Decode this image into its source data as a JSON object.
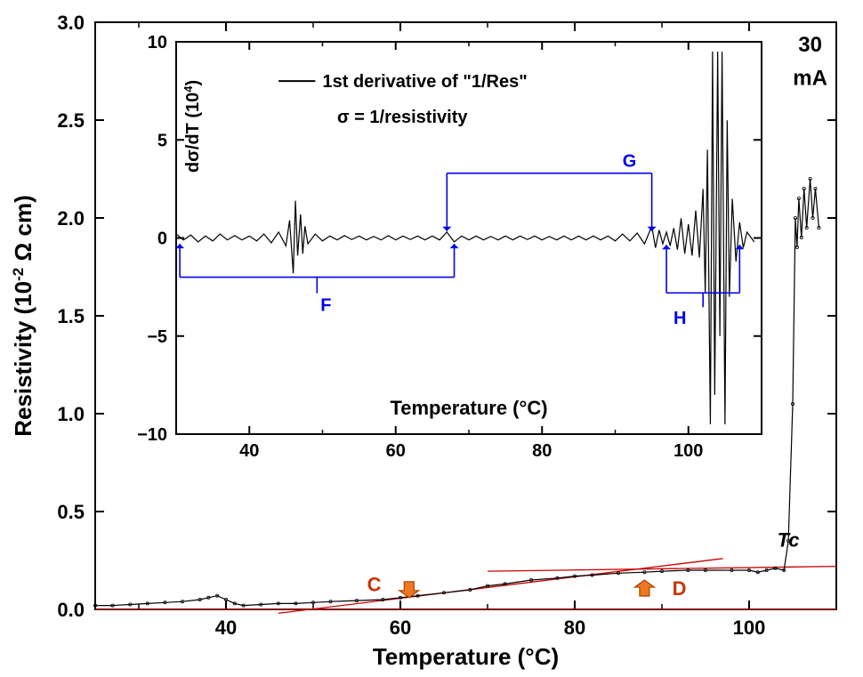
{
  "main": {
    "type": "line",
    "xlabel": "Temperature (°C)",
    "ylabel": "Resistivity (10⁻² Ω cm)",
    "label_fontsize": 26,
    "label_fontweight": "bold",
    "label_color": "#000000",
    "xlim": [
      25,
      110
    ],
    "ylim": [
      0,
      3.0
    ],
    "xticks": [
      40,
      60,
      80,
      100
    ],
    "yticks": [
      0.0,
      0.5,
      1.0,
      1.5,
      2.0,
      2.5,
      3.0
    ],
    "tick_fontsize": 22,
    "tick_fontweight": "bold",
    "border_color": "#000000",
    "border_width": 2,
    "background_color": "#ffffff",
    "line_color": "#000000",
    "data_marker_color": "#000000",
    "tangent_line_color": "#cc0000",
    "tangent_line_width": 1.3,
    "annotation_color": "#cc3300",
    "annotation_fontsize": 22,
    "annotations": {
      "C": "C",
      "D": "D",
      "Tc": "Tc",
      "topright": "30",
      "topright_unit": "mA"
    },
    "arrow_fill": "#ee7722",
    "arrow_stroke": "#aa4400",
    "data": [
      {
        "x": 25,
        "y": 0.02
      },
      {
        "x": 27,
        "y": 0.02
      },
      {
        "x": 29,
        "y": 0.025
      },
      {
        "x": 31,
        "y": 0.03
      },
      {
        "x": 33,
        "y": 0.035
      },
      {
        "x": 35,
        "y": 0.04
      },
      {
        "x": 37,
        "y": 0.05
      },
      {
        "x": 38,
        "y": 0.06
      },
      {
        "x": 39,
        "y": 0.07
      },
      {
        "x": 40,
        "y": 0.05
      },
      {
        "x": 41,
        "y": 0.03
      },
      {
        "x": 42,
        "y": 0.02
      },
      {
        "x": 44,
        "y": 0.025
      },
      {
        "x": 46,
        "y": 0.03
      },
      {
        "x": 48,
        "y": 0.03
      },
      {
        "x": 50,
        "y": 0.035
      },
      {
        "x": 52,
        "y": 0.04
      },
      {
        "x": 55,
        "y": 0.045
      },
      {
        "x": 58,
        "y": 0.05
      },
      {
        "x": 60,
        "y": 0.06
      },
      {
        "x": 62,
        "y": 0.07
      },
      {
        "x": 65,
        "y": 0.085
      },
      {
        "x": 68,
        "y": 0.1
      },
      {
        "x": 70,
        "y": 0.12
      },
      {
        "x": 72,
        "y": 0.13
      },
      {
        "x": 75,
        "y": 0.15
      },
      {
        "x": 78,
        "y": 0.16
      },
      {
        "x": 80,
        "y": 0.17
      },
      {
        "x": 82,
        "y": 0.175
      },
      {
        "x": 85,
        "y": 0.185
      },
      {
        "x": 88,
        "y": 0.19
      },
      {
        "x": 90,
        "y": 0.195
      },
      {
        "x": 93,
        "y": 0.2
      },
      {
        "x": 95,
        "y": 0.2
      },
      {
        "x": 98,
        "y": 0.2
      },
      {
        "x": 100,
        "y": 0.2
      },
      {
        "x": 101,
        "y": 0.19
      },
      {
        "x": 102,
        "y": 0.2
      },
      {
        "x": 103,
        "y": 0.21
      },
      {
        "x": 104,
        "y": 0.2
      },
      {
        "x": 104.5,
        "y": 0.35
      },
      {
        "x": 105,
        "y": 1.05
      },
      {
        "x": 105.3,
        "y": 2.0
      },
      {
        "x": 105.5,
        "y": 1.85
      },
      {
        "x": 105.7,
        "y": 2.1
      },
      {
        "x": 106,
        "y": 1.9
      },
      {
        "x": 106.3,
        "y": 2.15
      },
      {
        "x": 106.6,
        "y": 1.95
      },
      {
        "x": 107,
        "y": 2.2
      },
      {
        "x": 107.3,
        "y": 2.0
      },
      {
        "x": 107.6,
        "y": 2.15
      },
      {
        "x": 108,
        "y": 1.95
      }
    ]
  },
  "inset": {
    "type": "line",
    "legend_line": "1st derivative of \"1/Res\"",
    "legend_sigma": "σ = 1/resistivity",
    "legend_fontsize": 20,
    "legend_fontweight": "bold",
    "xlabel": "Temperature (°C)",
    "ylabel": "dσ/dT (10⁴)",
    "label_fontsize": 20,
    "label_fontweight": "bold",
    "label_color": "#000000",
    "xlim": [
      30,
      110
    ],
    "ylim": [
      -10,
      10
    ],
    "xticks": [
      40,
      60,
      80,
      100
    ],
    "yticks": [
      -10,
      -5,
      0,
      5,
      10
    ],
    "tick_fontsize": 20,
    "tick_fontweight": "bold",
    "border_color": "#000000",
    "border_width": 2,
    "background_color": "#ffffff",
    "line_color": "#000000",
    "annotation_color": "#0000ee",
    "annotation_line_width": 1.6,
    "annotations": {
      "F": "F",
      "G": "G",
      "H": "H"
    },
    "data": [
      {
        "x": 30,
        "y": 0.2
      },
      {
        "x": 31,
        "y": -0.1
      },
      {
        "x": 32,
        "y": 0.15
      },
      {
        "x": 33,
        "y": -0.2
      },
      {
        "x": 34,
        "y": 0.1
      },
      {
        "x": 35,
        "y": -0.15
      },
      {
        "x": 36,
        "y": 0.2
      },
      {
        "x": 37,
        "y": -0.1
      },
      {
        "x": 38,
        "y": 0.12
      },
      {
        "x": 39,
        "y": -0.1
      },
      {
        "x": 40,
        "y": 0.1
      },
      {
        "x": 41,
        "y": -0.15
      },
      {
        "x": 42,
        "y": 0.2
      },
      {
        "x": 43,
        "y": -0.25
      },
      {
        "x": 44,
        "y": 0.3
      },
      {
        "x": 45,
        "y": -0.4
      },
      {
        "x": 45.5,
        "y": 0.9
      },
      {
        "x": 46,
        "y": -1.8
      },
      {
        "x": 46.3,
        "y": 1.9
      },
      {
        "x": 46.6,
        "y": -0.9
      },
      {
        "x": 47,
        "y": 1.2
      },
      {
        "x": 47.3,
        "y": -0.8
      },
      {
        "x": 47.6,
        "y": 0.6
      },
      {
        "x": 48,
        "y": -0.3
      },
      {
        "x": 49,
        "y": 0.2
      },
      {
        "x": 50,
        "y": -0.15
      },
      {
        "x": 51,
        "y": 0.1
      },
      {
        "x": 52,
        "y": -0.1
      },
      {
        "x": 53,
        "y": 0.12
      },
      {
        "x": 54,
        "y": -0.08
      },
      {
        "x": 55,
        "y": 0.1
      },
      {
        "x": 56,
        "y": -0.1
      },
      {
        "x": 57,
        "y": 0.08
      },
      {
        "x": 58,
        "y": -0.1
      },
      {
        "x": 59,
        "y": 0.12
      },
      {
        "x": 60,
        "y": -0.1
      },
      {
        "x": 61,
        "y": 0.1
      },
      {
        "x": 62,
        "y": -0.08
      },
      {
        "x": 63,
        "y": 0.1
      },
      {
        "x": 64,
        "y": -0.1
      },
      {
        "x": 65,
        "y": 0.1
      },
      {
        "x": 66,
        "y": -0.1
      },
      {
        "x": 67,
        "y": 0.3
      },
      {
        "x": 68,
        "y": -0.2
      },
      {
        "x": 69,
        "y": 0.1
      },
      {
        "x": 70,
        "y": -0.1
      },
      {
        "x": 71,
        "y": 0.1
      },
      {
        "x": 72,
        "y": -0.1
      },
      {
        "x": 73,
        "y": 0.08
      },
      {
        "x": 74,
        "y": -0.1
      },
      {
        "x": 75,
        "y": 0.1
      },
      {
        "x": 76,
        "y": -0.1
      },
      {
        "x": 77,
        "y": 0.1
      },
      {
        "x": 78,
        "y": -0.08
      },
      {
        "x": 79,
        "y": 0.1
      },
      {
        "x": 80,
        "y": -0.1
      },
      {
        "x": 81,
        "y": 0.08
      },
      {
        "x": 82,
        "y": -0.1
      },
      {
        "x": 83,
        "y": 0.1
      },
      {
        "x": 84,
        "y": -0.1
      },
      {
        "x": 85,
        "y": 0.1
      },
      {
        "x": 86,
        "y": -0.1
      },
      {
        "x": 87,
        "y": 0.1
      },
      {
        "x": 88,
        "y": -0.1
      },
      {
        "x": 89,
        "y": 0.1
      },
      {
        "x": 90,
        "y": -0.15
      },
      {
        "x": 91,
        "y": 0.2
      },
      {
        "x": 92,
        "y": -0.15
      },
      {
        "x": 93,
        "y": 0.25
      },
      {
        "x": 94,
        "y": -0.3
      },
      {
        "x": 95,
        "y": 0.6
      },
      {
        "x": 95.5,
        "y": -0.5
      },
      {
        "x": 96,
        "y": 0.4
      },
      {
        "x": 96.5,
        "y": -0.3
      },
      {
        "x": 97,
        "y": 0.3
      },
      {
        "x": 97.5,
        "y": -0.4
      },
      {
        "x": 98,
        "y": 0.5
      },
      {
        "x": 98.5,
        "y": -0.6
      },
      {
        "x": 99,
        "y": 1.0
      },
      {
        "x": 99.5,
        "y": -0.8
      },
      {
        "x": 100,
        "y": 0.7
      },
      {
        "x": 100.5,
        "y": -0.9
      },
      {
        "x": 101,
        "y": 1.4
      },
      {
        "x": 101.5,
        "y": -1.0
      },
      {
        "x": 102,
        "y": 2.5
      },
      {
        "x": 102.3,
        "y": -2.8
      },
      {
        "x": 102.6,
        "y": 4.5
      },
      {
        "x": 103,
        "y": -9.5
      },
      {
        "x": 103.3,
        "y": 9.5
      },
      {
        "x": 103.6,
        "y": -8
      },
      {
        "x": 104,
        "y": 9.5
      },
      {
        "x": 104.3,
        "y": -5
      },
      {
        "x": 104.6,
        "y": 9.5
      },
      {
        "x": 105,
        "y": -9.5
      },
      {
        "x": 105.3,
        "y": 6
      },
      {
        "x": 105.6,
        "y": -3
      },
      {
        "x": 106,
        "y": 2
      },
      {
        "x": 106.5,
        "y": -1.2
      },
      {
        "x": 107,
        "y": 0.8
      },
      {
        "x": 107.5,
        "y": -0.5
      },
      {
        "x": 108,
        "y": 0.3
      },
      {
        "x": 109,
        "y": -0.2
      }
    ]
  }
}
